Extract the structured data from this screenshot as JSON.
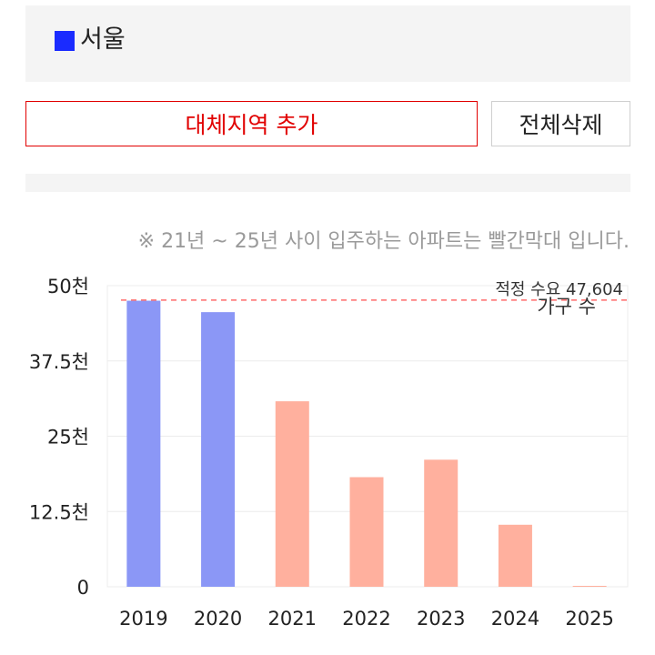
{
  "region": {
    "name": "서울",
    "color": "#1a2bff"
  },
  "buttons": {
    "add_label": "대체지역 추가",
    "clear_label": "전체삭제"
  },
  "note": "※ 21년 ~ 25년 사이 입주하는 아파트는 빨간막대 입니다.",
  "chart_data": {
    "type": "bar",
    "categories": [
      "2019",
      "2020",
      "2021",
      "2022",
      "2023",
      "2024",
      "2025"
    ],
    "values": [
      47500,
      45600,
      30800,
      18200,
      21100,
      10300,
      150
    ],
    "bar_colors": [
      "#8b97f6",
      "#8b97f6",
      "#ffb09e",
      "#ffb09e",
      "#ffb09e",
      "#ffb09e",
      "#ffb09e"
    ],
    "ylim": [
      0,
      50000
    ],
    "yticks": [
      0,
      12500,
      25000,
      37500,
      50000
    ],
    "ytick_labels": [
      "0",
      "12.5천",
      "25천",
      "37.5천",
      "50천"
    ],
    "grid": true,
    "reference_line": {
      "value": 47604,
      "label": "적정 수요 47,604",
      "color": "#ff6b6b"
    },
    "overlap_label": "가구 수"
  }
}
